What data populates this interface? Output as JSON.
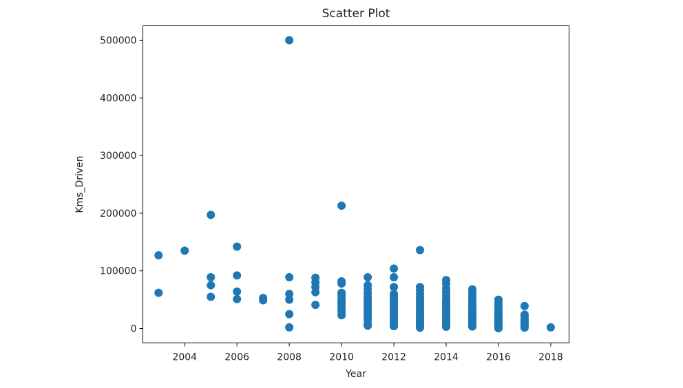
{
  "chart_data": {
    "type": "scatter",
    "title": "Scatter Plot",
    "xlabel": "Year",
    "ylabel": "Kms_Driven",
    "xlim": [
      2002.4,
      2018.7
    ],
    "ylim": [
      -25000,
      525000
    ],
    "xticks": [
      2004,
      2006,
      2008,
      2010,
      2012,
      2014,
      2016,
      2018
    ],
    "xtick_labels": [
      "2004",
      "2006",
      "2008",
      "2010",
      "2012",
      "2014",
      "2016",
      "2018"
    ],
    "yticks": [
      0,
      100000,
      200000,
      300000,
      400000,
      500000
    ],
    "ytick_labels": [
      "0",
      "100000",
      "200000",
      "300000",
      "400000",
      "500000"
    ],
    "grid": false,
    "legend": false,
    "color": "#1f77b4",
    "series": [
      {
        "x": [
          2003,
          2003,
          2004,
          2005,
          2005,
          2005,
          2005,
          2006,
          2006,
          2006,
          2006,
          2007,
          2007,
          2008,
          2008,
          2008,
          2008,
          2008,
          2008,
          2009,
          2009,
          2009,
          2009,
          2009,
          2010,
          2010,
          2010,
          2010,
          2010,
          2010,
          2010,
          2010,
          2010,
          2010,
          2010,
          2010,
          2011,
          2011,
          2011,
          2011,
          2011,
          2011,
          2011,
          2011,
          2011,
          2011,
          2011,
          2011,
          2011,
          2011,
          2011,
          2012,
          2012,
          2012,
          2012,
          2012,
          2012,
          2012,
          2012,
          2012,
          2012,
          2012,
          2012,
          2012,
          2012,
          2012,
          2012,
          2012,
          2013,
          2013,
          2013,
          2013,
          2013,
          2013,
          2013,
          2013,
          2013,
          2013,
          2013,
          2013,
          2013,
          2013,
          2013,
          2013,
          2013,
          2013,
          2014,
          2014,
          2014,
          2014,
          2014,
          2014,
          2014,
          2014,
          2014,
          2014,
          2014,
          2014,
          2014,
          2014,
          2014,
          2014,
          2014,
          2014,
          2014,
          2015,
          2015,
          2015,
          2015,
          2015,
          2015,
          2015,
          2015,
          2015,
          2015,
          2015,
          2015,
          2015,
          2015,
          2015,
          2015,
          2015,
          2015,
          2016,
          2016,
          2016,
          2016,
          2016,
          2016,
          2016,
          2016,
          2016,
          2016,
          2016,
          2016,
          2016,
          2016,
          2016,
          2016,
          2017,
          2017,
          2017,
          2017,
          2017,
          2017,
          2017,
          2017,
          2017,
          2017,
          2018
        ],
        "y": [
          127000,
          62000,
          135000,
          197000,
          89000,
          75000,
          55000,
          142000,
          92000,
          64000,
          51000,
          53000,
          49000,
          500000,
          89000,
          60000,
          50000,
          25000,
          2000,
          88000,
          80000,
          72000,
          63000,
          41000,
          213000,
          82000,
          78000,
          62000,
          58000,
          52000,
          48000,
          44000,
          40000,
          35000,
          29000,
          23000,
          89000,
          75000,
          68000,
          61000,
          55000,
          50000,
          45000,
          40000,
          35000,
          30000,
          25000,
          20000,
          15000,
          8000,
          5000,
          104000,
          89000,
          72000,
          60000,
          56000,
          52000,
          47000,
          43000,
          38000,
          33000,
          29000,
          25000,
          20000,
          15000,
          11000,
          7000,
          4000,
          136000,
          72000,
          66000,
          60000,
          55000,
          50000,
          45000,
          40000,
          35000,
          30000,
          26000,
          22000,
          18000,
          14000,
          10000,
          7000,
          4000,
          1500,
          84000,
          78000,
          70000,
          64000,
          58000,
          52000,
          47000,
          43000,
          40000,
          36000,
          32000,
          28000,
          24000,
          20000,
          16000,
          12000,
          9000,
          6000,
          3000,
          68000,
          62000,
          56000,
          51000,
          46000,
          42000,
          38000,
          34000,
          30000,
          27000,
          24000,
          21000,
          18000,
          15000,
          12000,
          9000,
          6000,
          3500,
          50000,
          45000,
          40000,
          35000,
          31000,
          27000,
          24000,
          21000,
          18000,
          15000,
          12000,
          9000,
          6000,
          4000,
          2000,
          500,
          39000,
          24000,
          20000,
          16000,
          13000,
          10000,
          7000,
          5000,
          3000,
          1500,
          2000
        ]
      }
    ]
  }
}
